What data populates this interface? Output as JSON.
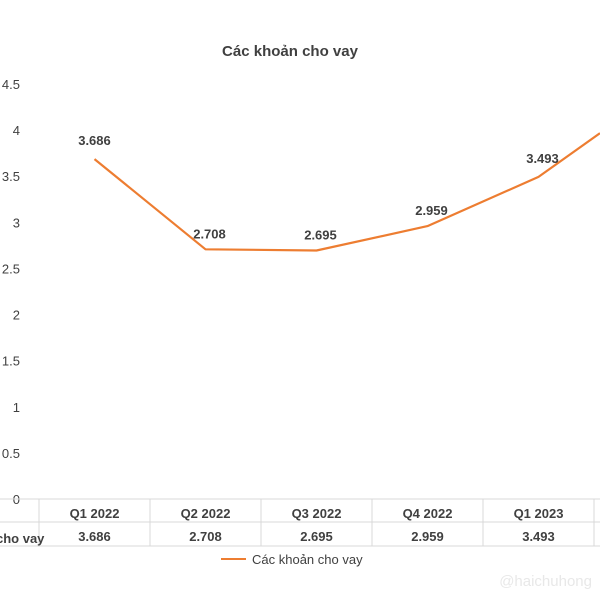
{
  "chart_data": {
    "type": "line",
    "title": "Các khoản cho vay",
    "categories": [
      "Q1 2022",
      "Q2 2022",
      "Q3 2022",
      "Q4 2022",
      "Q1 2023"
    ],
    "series": [
      {
        "name": "Các khoản cho vay",
        "values": [
          3.686,
          2.708,
          2.695,
          2.959,
          3.493
        ],
        "labels": [
          "3.686",
          "2.708",
          "2.695",
          "2.959",
          "3.493"
        ],
        "color": "#ed7d31"
      }
    ],
    "table_row_label": "cho vay",
    "ylim": [
      0,
      4.5
    ],
    "yticks": [
      "0",
      "0.5",
      "1",
      "1.5",
      "2",
      "2.5",
      "3",
      "3.5",
      "4",
      "4.5"
    ],
    "grid": false,
    "legend_position": "bottom"
  },
  "watermark": "@haichuhong"
}
